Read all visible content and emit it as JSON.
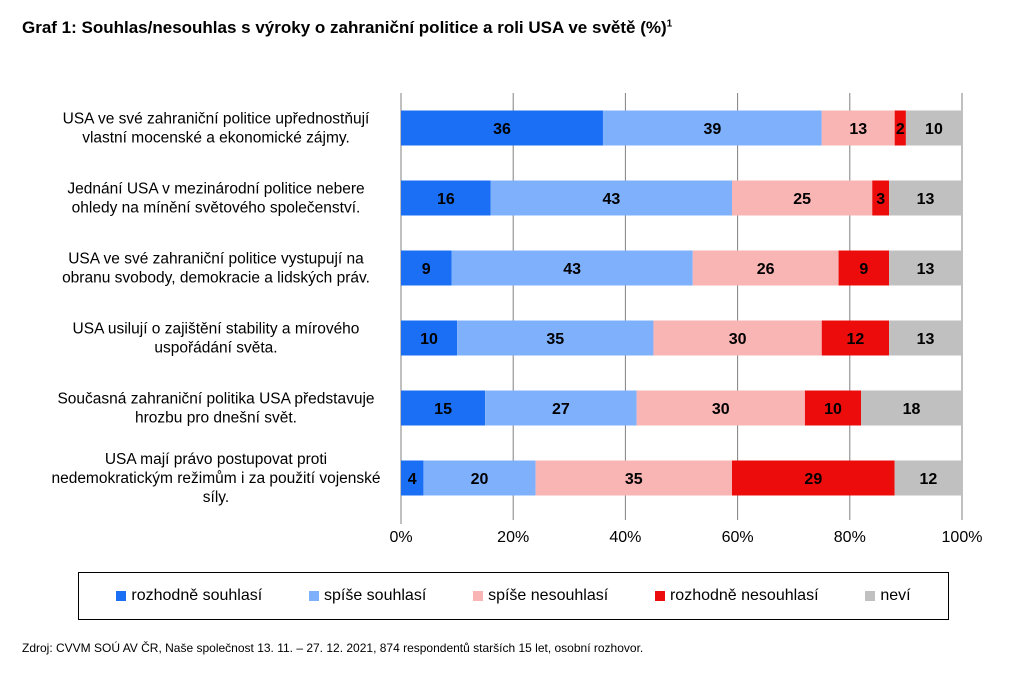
{
  "title": "Graf 1: Souhlas/nesouhlas s výroky o zahraniční politice a roli USA ve světě (%)",
  "title_superscript": "1",
  "source": "Zdroj: CVVM SOÚ AV ČR, Naše společnost 13. 11. – 27. 12. 2021, 874 respondentů starších 15 let, osobní rozhovor.",
  "chart_data": {
    "type": "bar",
    "orientation": "horizontal",
    "stacked": true,
    "percent_scale": true,
    "xlim": [
      0,
      100
    ],
    "x_tick_labels": [
      "0%",
      "20%",
      "40%",
      "60%",
      "80%",
      "100%"
    ],
    "grid": true,
    "legend_position": "bottom",
    "categories": [
      [
        "USA ve své zahraniční politice upřednostňují",
        "vlastní mocenské a ekonomické zájmy."
      ],
      [
        "Jednání USA v mezinárodní politice nebere",
        "ohledy na mínění světového společenství."
      ],
      [
        "USA ve své zahraniční politice vystupují na",
        "obranu svobody, demokracie a lidských práv."
      ],
      [
        "USA usilují o zajištění stability a mírového",
        "uspořádání světa."
      ],
      [
        "Současná zahraniční politika USA představuje",
        "hrozbu pro dnešní svět."
      ],
      [
        "USA mají právo postupovat proti",
        "nedemokratickým režimům i za použití vojenské",
        "síly."
      ]
    ],
    "series": [
      {
        "name": "rozhodně souhlasí",
        "color": "#1a6ff5",
        "values": [
          36,
          16,
          9,
          10,
          15,
          4
        ]
      },
      {
        "name": "spíše souhlasí",
        "color": "#7fb0fb",
        "values": [
          39,
          43,
          43,
          35,
          27,
          20
        ]
      },
      {
        "name": "spíše nesouhlasí",
        "color": "#f9b4b4",
        "values": [
          13,
          25,
          26,
          30,
          30,
          35
        ]
      },
      {
        "name": "rozhodně nesouhlasí",
        "color": "#ed0c0c",
        "values": [
          2,
          3,
          9,
          12,
          10,
          29
        ]
      },
      {
        "name": "neví",
        "color": "#c0c0c0",
        "values": [
          10,
          13,
          13,
          13,
          18,
          12
        ]
      }
    ]
  }
}
